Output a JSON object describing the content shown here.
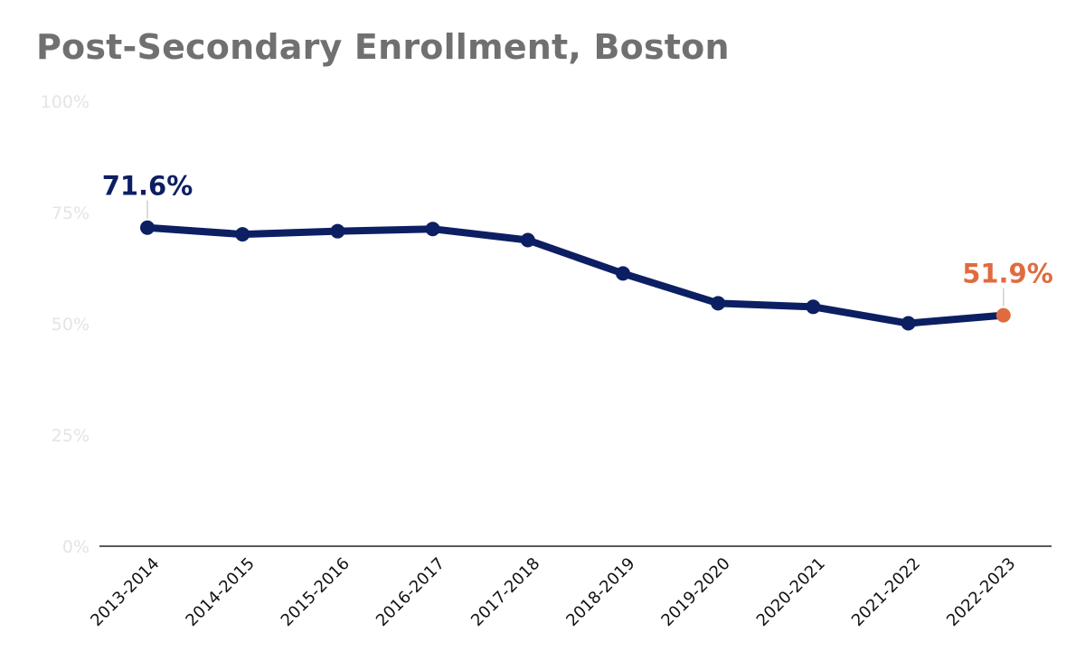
{
  "chart_data": {
    "type": "line",
    "title": "Post-Secondary Enrollment, Boston",
    "xlabel": "",
    "ylabel": "",
    "ylim": [
      0,
      100
    ],
    "yticks": [
      0,
      25,
      50,
      75,
      100
    ],
    "ytick_labels": [
      "0%",
      "25%",
      "50%",
      "75%",
      "100%"
    ],
    "grid": false,
    "categories": [
      "2013-2014",
      "2014-2015",
      "2015-2016",
      "2016-2017",
      "2017-2018",
      "2018-2019",
      "2019-2020",
      "2020-2021",
      "2021-2022",
      "2022-2023"
    ],
    "series": [
      {
        "name": "Post-Secondary Enrollment",
        "values": [
          71.6,
          70.1,
          70.8,
          71.3,
          68.8,
          61.3,
          54.6,
          53.8,
          50.1,
          51.9
        ],
        "color": "#0d1f63",
        "highlight_color": "#e06b3f"
      }
    ],
    "annotations": [
      {
        "index": 0,
        "text": "71.6%",
        "color": "#0d1f63"
      },
      {
        "index": 9,
        "text": "51.9%",
        "color": "#e06b3f"
      }
    ]
  }
}
